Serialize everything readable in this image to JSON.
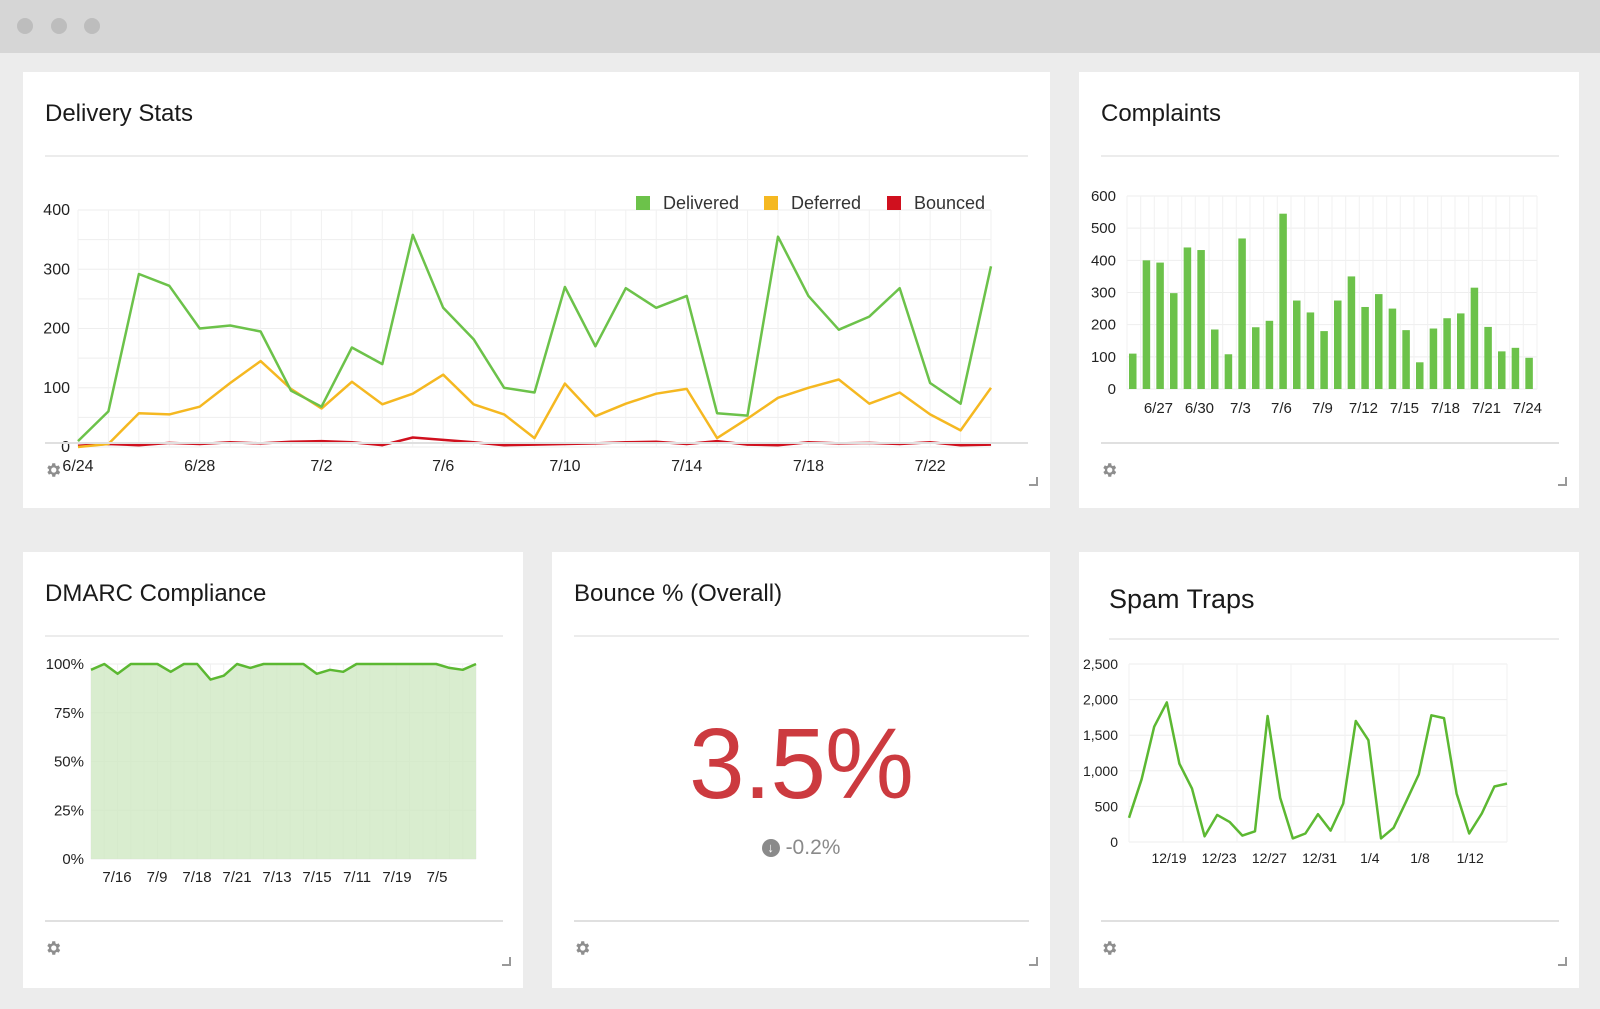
{
  "colors": {
    "green": "#6cc24a",
    "line_green": "#5cb832",
    "yellow": "#f5b821",
    "red": "#d0101e",
    "bounce_red": "#cc3a3f"
  },
  "delivery": {
    "title": "Delivery Stats",
    "gear_icon": "gear-icon",
    "chart_data": {
      "type": "line",
      "x": [
        "6/24",
        "6/25",
        "6/26",
        "6/27",
        "6/28",
        "6/29",
        "6/30",
        "7/1",
        "7/2",
        "7/3",
        "7/4",
        "7/5",
        "7/6",
        "7/7",
        "7/8",
        "7/9",
        "7/10",
        "7/11",
        "7/12",
        "7/13",
        "7/14",
        "7/15",
        "7/16",
        "7/17",
        "7/18",
        "7/19",
        "7/20",
        "7/21",
        "7/22",
        "7/23",
        "7/24"
      ],
      "tick_labels": [
        "6/24",
        "6/28",
        "7/2",
        "7/6",
        "7/10",
        "7/14",
        "7/18",
        "7/22"
      ],
      "yticks": [
        "0",
        "100",
        "200",
        "300",
        "400"
      ],
      "ylim": [
        0,
        400
      ],
      "series": [
        {
          "name": "Delivered",
          "color": "#6cc24a",
          "values": [
            10,
            60,
            292,
            272,
            200,
            205,
            195,
            95,
            68,
            168,
            140,
            358,
            235,
            182,
            100,
            92,
            270,
            170,
            268,
            235,
            255,
            57,
            53,
            355,
            255,
            198,
            220,
            268,
            108,
            73,
            305
          ]
        },
        {
          "name": "Deferred",
          "color": "#f5b821",
          "values": [
            0,
            5,
            57,
            55,
            68,
            108,
            145,
            98,
            65,
            110,
            72,
            90,
            122,
            72,
            55,
            15,
            107,
            52,
            73,
            90,
            98,
            15,
            48,
            83,
            100,
            114,
            73,
            92,
            55,
            28,
            100
          ]
        },
        {
          "name": "Bounced",
          "color": "#d0101e",
          "values": [
            2,
            5,
            3,
            7,
            5,
            8,
            6,
            9,
            10,
            8,
            3,
            16,
            12,
            8,
            3,
            4,
            5,
            6,
            8,
            9,
            5,
            10,
            4,
            3,
            8,
            6,
            7,
            5,
            8,
            3,
            4
          ]
        }
      ],
      "legend": "top-right",
      "grid": true
    }
  },
  "complaints": {
    "title": "Complaints",
    "gear_icon": "gear-icon",
    "chart_data": {
      "type": "bar",
      "values": [
        110,
        400,
        393,
        298,
        440,
        432,
        185,
        108,
        468,
        192,
        212,
        545,
        275,
        238,
        180,
        275,
        350,
        255,
        295,
        250,
        183,
        83,
        188,
        220,
        235,
        315,
        193,
        117,
        128,
        97
      ],
      "tick_labels": [
        "6/27",
        "6/30",
        "7/3",
        "7/6",
        "7/9",
        "7/12",
        "7/15",
        "7/18",
        "7/21",
        "7/24"
      ],
      "yticks": [
        "0",
        "100",
        "200",
        "300",
        "400",
        "500",
        "600"
      ],
      "ylim": [
        0,
        600
      ],
      "grid": true
    }
  },
  "dmarc": {
    "title": "DMARC Compliance",
    "gear_icon": "gear-icon",
    "chart_data": {
      "type": "area",
      "values": [
        97,
        100,
        95,
        100,
        100,
        100,
        96,
        100,
        100,
        92,
        94,
        100,
        98,
        100,
        100,
        100,
        100,
        95,
        97,
        96,
        100,
        100,
        100,
        100,
        100,
        100,
        100,
        98,
        97,
        100
      ],
      "tick_labels": [
        "7/16",
        "7/9",
        "7/18",
        "7/21",
        "7/13",
        "7/15",
        "7/11",
        "7/19",
        "7/5"
      ],
      "yticks": [
        "0%",
        "25%",
        "50%",
        "75%",
        "100%"
      ],
      "ylim": [
        0,
        100
      ],
      "grid": true
    }
  },
  "bounce": {
    "title": "Bounce % (Overall)",
    "value": "3.5%",
    "delta_icon": "arrow-down-circle-icon",
    "delta": "-0.2%",
    "gear_icon": "gear-icon"
  },
  "spam": {
    "title": "Spam Traps",
    "gear_icon": "gear-icon",
    "chart_data": {
      "type": "line",
      "values": [
        340,
        880,
        1620,
        1960,
        1100,
        750,
        80,
        380,
        280,
        90,
        150,
        1770,
        620,
        50,
        120,
        390,
        160,
        540,
        1700,
        1430,
        50,
        200,
        570,
        950,
        1780,
        1740,
        680,
        120,
        400,
        780,
        820
      ],
      "tick_labels": [
        "12/19",
        "12/23",
        "12/27",
        "12/31",
        "1/4",
        "1/8",
        "1/12"
      ],
      "yticks": [
        "0",
        "500",
        "1,000",
        "1,500",
        "2,000",
        "2,500"
      ],
      "ylim": [
        0,
        2500
      ],
      "grid": true
    }
  }
}
